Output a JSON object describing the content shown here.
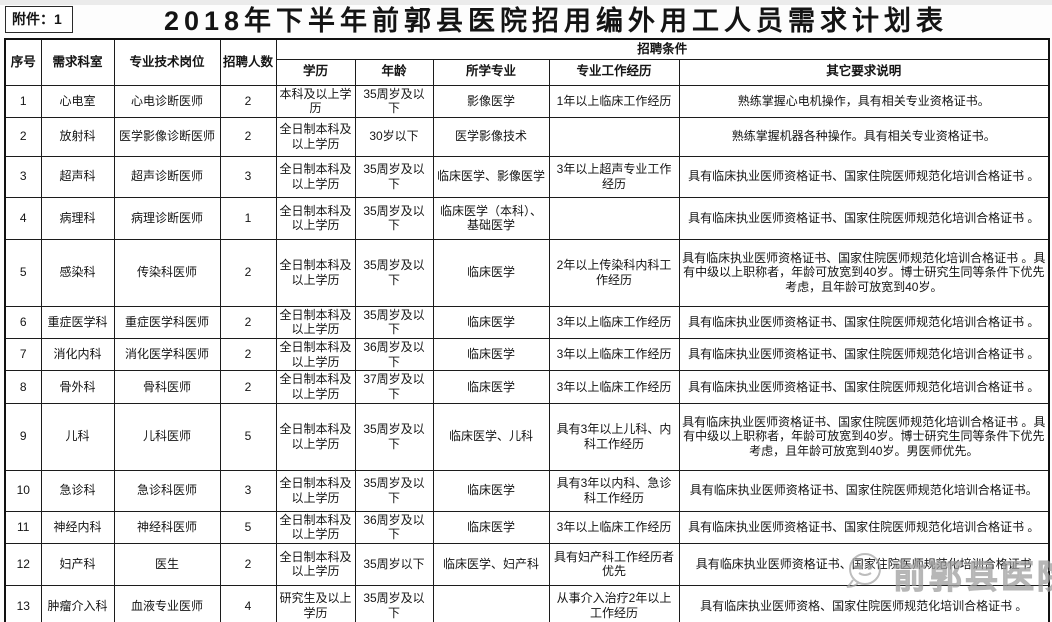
{
  "attachment_label": "附件：1",
  "title": "2018年下半年前郭县医院招用编外用工人员需求计划表",
  "watermark": {
    "text": "前郭县医院"
  },
  "table": {
    "columns": {
      "no": "序号",
      "dept": "需求科室",
      "position": "专业技术岗位",
      "count": "招聘人数",
      "conditions_group": "招聘条件",
      "education": "学历",
      "age": "年龄",
      "major": "所学专业",
      "experience": "专业工作经历",
      "other": "其它要求说明"
    },
    "rows": [
      {
        "no": "1",
        "dept": "心电室",
        "position": "心电诊断医师",
        "count": "2",
        "education": "本科及以上学历",
        "age": "35周岁及以下",
        "major": "影像医学",
        "experience": "1年以上临床工作经历",
        "other": "熟练掌握心电机操作，具有相关专业资格证书。"
      },
      {
        "no": "2",
        "dept": "放射科",
        "position": "医学影像诊断医师",
        "count": "2",
        "education": "全日制本科及以上学历",
        "age": "30岁以下",
        "major": "医学影像技术",
        "experience": "",
        "other": "熟练掌握机器各种操作。具有相关专业资格证书。"
      },
      {
        "no": "3",
        "dept": "超声科",
        "position": "超声诊断医师",
        "count": "3",
        "education": "全日制本科及以上学历",
        "age": "35周岁及以下",
        "major": "临床医学、影像医学",
        "experience": "3年以上超声专业工作经历",
        "other": "具有临床执业医师资格证书、国家住院医师规范化培训合格证书 。"
      },
      {
        "no": "4",
        "dept": "病理科",
        "position": "病理诊断医师",
        "count": "1",
        "education": "全日制本科及以上学历",
        "age": "35周岁及以下",
        "major": "临床医学（本科）、基础医学",
        "experience": "",
        "other": "具有临床执业医师资格证书、国家住院医师规范化培训合格证书 。"
      },
      {
        "no": "5",
        "dept": "感染科",
        "position": "传染科医师",
        "count": "2",
        "education": "全日制本科及以上学历",
        "age": "35周岁及以下",
        "major": "临床医学",
        "experience": "2年以上传染科内科工作经历",
        "other": "具有临床执业医师资格证书、国家住院医师规范化培训合格证书 。具有中级以上职称者，年龄可放宽到40岁。博士研究生同等条件下优先考虑，且年龄可放宽到40岁。"
      },
      {
        "no": "6",
        "dept": "重症医学科",
        "position": "重症医学科医师",
        "count": "2",
        "education": "全日制本科及以上学历",
        "age": "35周岁及以下",
        "major": "临床医学",
        "experience": "3年以上临床工作经历",
        "other": "具有临床执业医师资格证书、国家住院医师规范化培训合格证书 。"
      },
      {
        "no": "7",
        "dept": "消化内科",
        "position": "消化医学科医师",
        "count": "2",
        "education": "全日制本科及以上学历",
        "age": "36周岁及以下",
        "major": "临床医学",
        "experience": "3年以上临床工作经历",
        "other": "具有临床执业医师资格证书、国家住院医师规范化培训合格证书 。"
      },
      {
        "no": "8",
        "dept": "骨外科",
        "position": "骨科医师",
        "count": "2",
        "education": "全日制本科及以上学历",
        "age": "37周岁及以下",
        "major": "临床医学",
        "experience": "3年以上临床工作经历",
        "other": "具有临床执业医师资格证书、国家住院医师规范化培训合格证书 。"
      },
      {
        "no": "9",
        "dept": "儿科",
        "position": "儿科医师",
        "count": "5",
        "education": "全日制本科及以上学历",
        "age": "35周岁及以下",
        "major": "临床医学、儿科",
        "experience": "具有3年以上儿科、内科工作经历",
        "other": "具有临床执业医师资格证书、国家住院医师规范化培训合格证书 。具有中级以上职称者，年龄可放宽到40岁。博士研究生同等条件下优先考虑，且年龄可放宽到40岁。男医师优先。"
      },
      {
        "no": "10",
        "dept": "急诊科",
        "position": "急诊科医师",
        "count": "3",
        "education": "全日制本科及以上学历",
        "age": "35周岁及以下",
        "major": "临床医学",
        "experience": "具有3年以内科、急诊科工作经历",
        "other": "具有临床执业医师资格证书、国家住院医师规范化培训合格证书。"
      },
      {
        "no": "11",
        "dept": "神经内科",
        "position": "神经科医师",
        "count": "5",
        "education": "全日制本科及以上学历",
        "age": "36周岁及以下",
        "major": "临床医学",
        "experience": "3年以上临床工作经历",
        "other": "具有临床执业医师资格证书、国家住院医师规范化培训合格证书 。"
      },
      {
        "no": "12",
        "dept": "妇产科",
        "position": "医生",
        "count": "2",
        "education": "全日制本科及以上学历",
        "age": "35周岁以下",
        "major": "临床医学、妇产科",
        "experience": "具有妇产科工作经历者优先",
        "other": "具有临床执业医师资格证书、国家住院医师规范化培训合格证书"
      },
      {
        "no": "13",
        "dept": "肿瘤介入科",
        "position": "血液专业医师",
        "count": "4",
        "education": "研究生及以上学历",
        "age": "35周岁及以下",
        "major": "",
        "experience": "从事介入治疗2年以上工作经历",
        "other": "具有临床执业医师资格、国家住院医师规范化培训合格证书 。"
      }
    ]
  }
}
